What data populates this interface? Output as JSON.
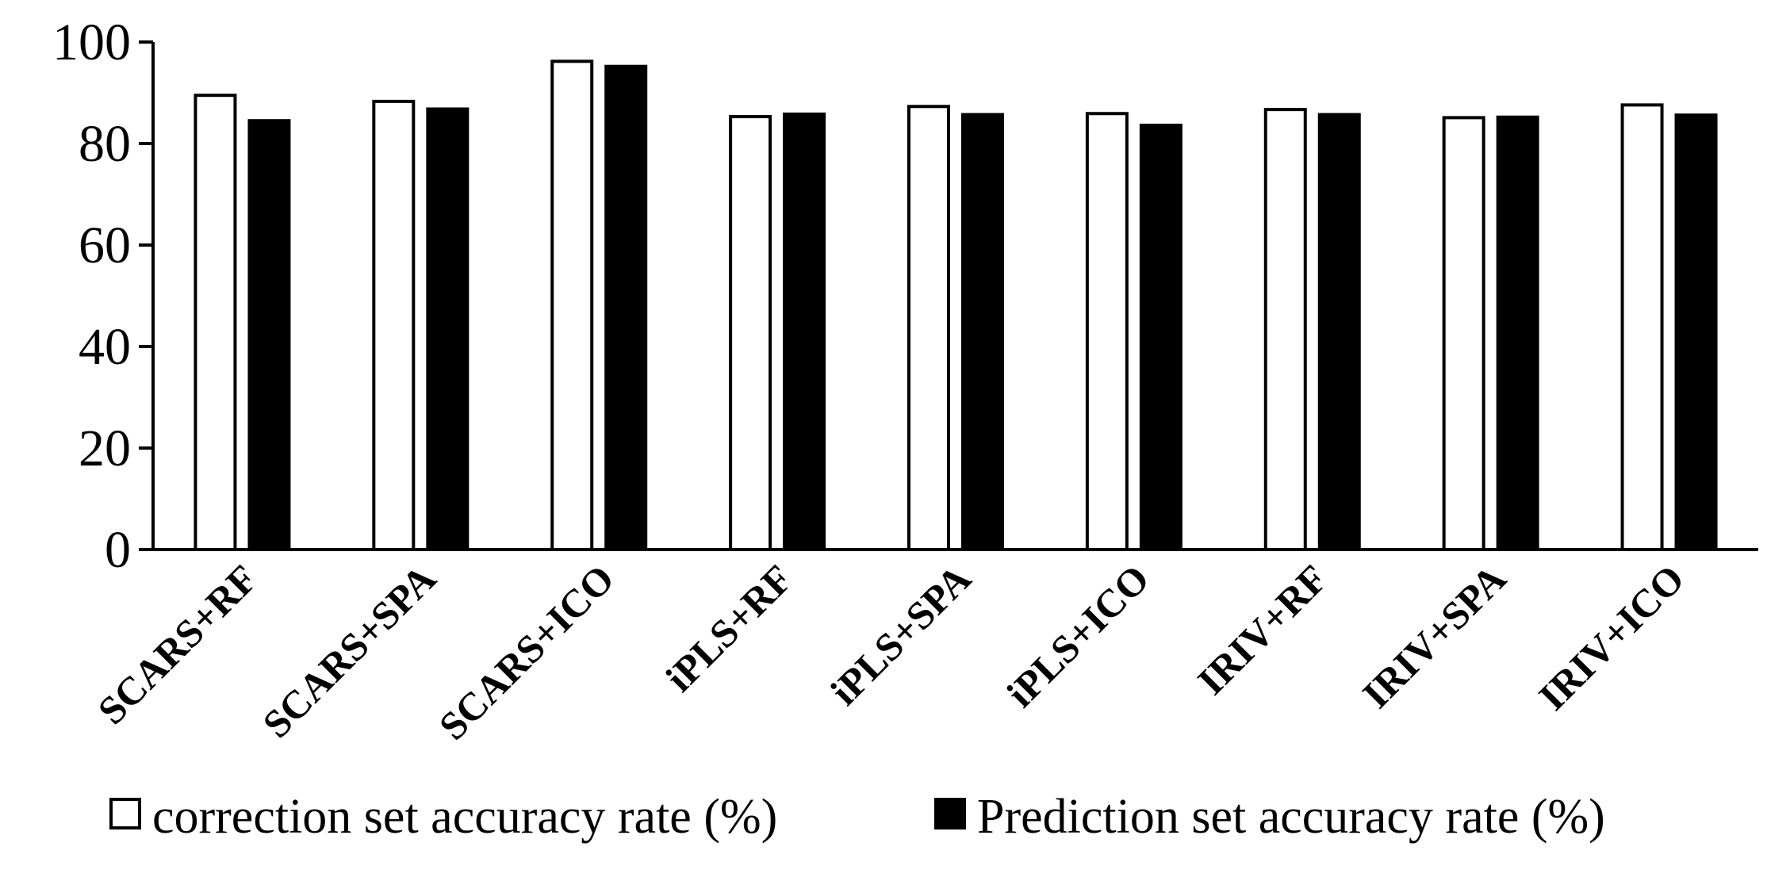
{
  "chart_data": {
    "type": "bar",
    "title": "",
    "xlabel": "",
    "ylabel": "",
    "ylim": [
      0,
      100
    ],
    "yticks": [
      0,
      20,
      40,
      60,
      80,
      100
    ],
    "grid": false,
    "legend_position": "bottom",
    "categories": [
      "SCARS+RF",
      "SCARS+SPA",
      "SCARS+ICO",
      "iPLS+RF",
      "iPLS+SPA",
      "iPLS+ICO",
      "IRIV+RF",
      "IRIV+SPA",
      "IRIV+ICO"
    ],
    "series": [
      {
        "name": "correction set accuracy rate (%)",
        "fill": "#ffffff",
        "stroke": "#000000",
        "values": [
          89.5,
          88.3,
          96.2,
          85.3,
          87.3,
          85.9,
          86.7,
          85.1,
          87.6
        ]
      },
      {
        "name": "Prediction set accuracy rate (%)",
        "fill": "#000000",
        "stroke": "#000000",
        "values": [
          84.5,
          86.8,
          95.2,
          85.8,
          85.7,
          83.6,
          85.7,
          85.2,
          85.6
        ]
      }
    ]
  }
}
